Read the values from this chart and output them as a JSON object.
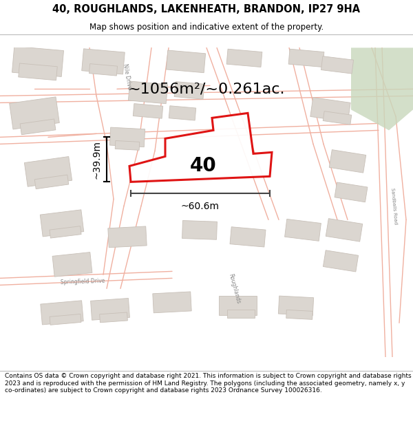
{
  "title": "40, ROUGHLANDS, LAKENHEATH, BRANDON, IP27 9HA",
  "subtitle": "Map shows position and indicative extent of the property.",
  "area_label": "~1056m²/~0.261ac.",
  "plot_number": "40",
  "width_label": "~60.6m",
  "height_label": "~39.9m",
  "footer": "Contains OS data © Crown copyright and database right 2021. This information is subject to Crown copyright and database rights 2023 and is reproduced with the permission of HM Land Registry. The polygons (including the associated geometry, namely x, y co-ordinates) are subject to Crown copyright and database rights 2023 Ordnance Survey 100026316.",
  "bg_color": "#f5f3f0",
  "map_bg": "#f5f3f0",
  "plot_color": "#dd0000",
  "plot_fill": "white",
  "street_color": "#f0b0a0",
  "street_lw": 1.0,
  "building_color": "#dbd6d0",
  "building_edge": "#c8c0b8",
  "green_color": "#c8d8bc",
  "title_fontsize": 10.5,
  "subtitle_fontsize": 8.5,
  "footer_fontsize": 6.5,
  "figsize": [
    6.0,
    6.25
  ],
  "dpi": 100,
  "map_xlim": [
    0,
    1100
  ],
  "map_ylim": [
    0,
    820
  ]
}
